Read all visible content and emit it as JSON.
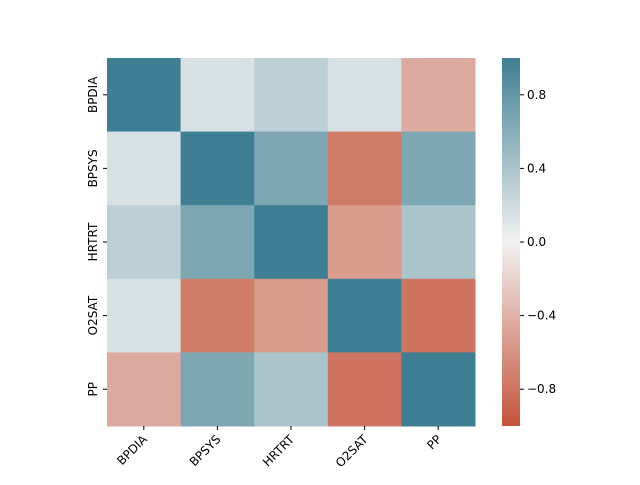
{
  "chart_data": {
    "type": "heatmap",
    "x_categories": [
      "BPDIA",
      "BPSYS",
      "HRTRT",
      "O2SAT",
      "PP"
    ],
    "y_categories": [
      "BPDIA",
      "BPSYS",
      "HRTRT",
      "O2SAT",
      "PP"
    ],
    "values": [
      [
        1.0,
        0.15,
        0.3,
        0.15,
        -0.45
      ],
      [
        0.15,
        1.0,
        0.65,
        -0.75,
        0.65
      ],
      [
        0.3,
        0.65,
        1.0,
        -0.55,
        0.4
      ],
      [
        0.15,
        -0.75,
        -0.55,
        1.0,
        -0.8
      ],
      [
        -0.45,
        0.65,
        0.4,
        -0.8,
        1.0
      ]
    ],
    "colorbar": {
      "range": [
        -1,
        1
      ],
      "ticks": [
        0.8,
        0.4,
        0.0,
        -0.4,
        -0.8
      ],
      "tick_labels": [
        "0.8",
        "0.4",
        "0.0",
        "−0.4",
        "−0.8"
      ],
      "colormap": "diverging",
      "color_low": "#c4533a",
      "color_mid": "#f2f2f2",
      "color_high": "#3f7f93"
    },
    "legend": "right"
  }
}
